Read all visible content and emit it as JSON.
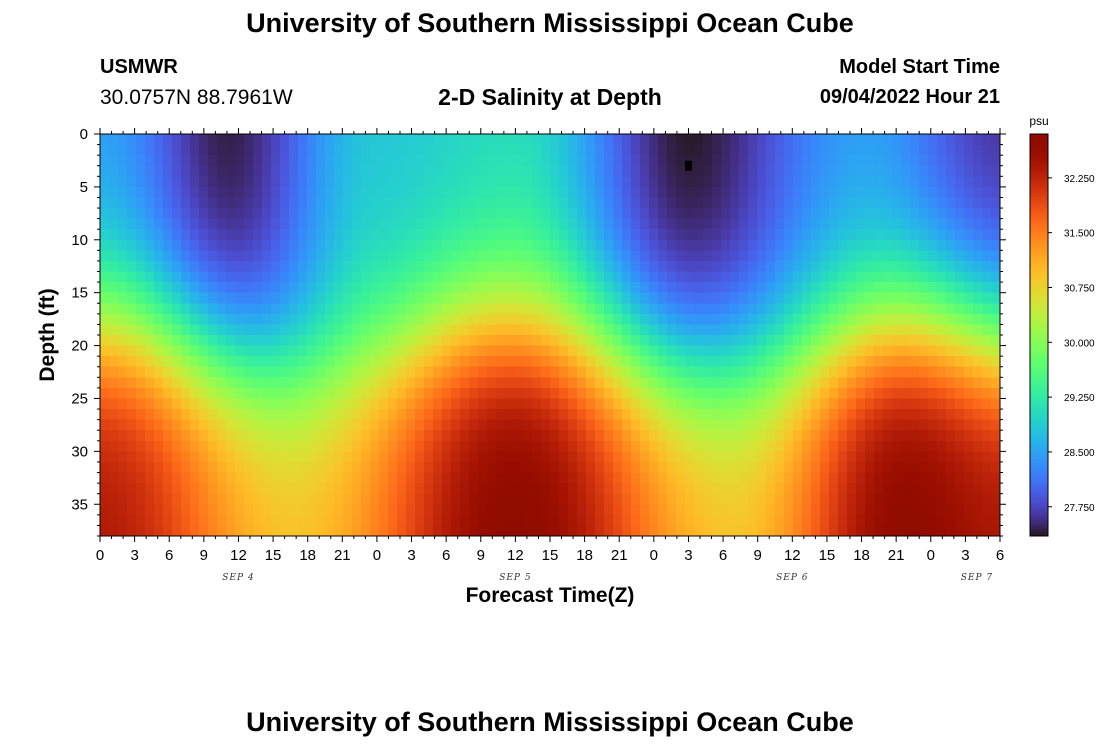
{
  "header": {
    "title": "University of Southern Mississippi Ocean Cube",
    "station": "USMWR",
    "coords": "30.0757N  88.7961W",
    "subtitle": "2-D Salinity at Depth",
    "model_start_label": "Model Start Time",
    "model_start_value": "09/04/2022 Hour 21"
  },
  "footer": {
    "title": "University of Southern Mississippi Ocean Cube"
  },
  "chart_data": {
    "type": "heatmap",
    "title": "2-D Salinity at Depth",
    "xlabel": "Forecast Time(Z)",
    "ylabel": "Depth (ft)",
    "x_range_hours": [
      0,
      78
    ],
    "y_range_ft": [
      0,
      38
    ],
    "y_inverted": true,
    "x_tick_labels": [
      "0",
      "3",
      "6",
      "9",
      "12",
      "15",
      "18",
      "21",
      "0",
      "3",
      "6",
      "9",
      "12",
      "15",
      "18",
      "21",
      "0",
      "3",
      "6",
      "9",
      "12",
      "15",
      "18",
      "21",
      "0",
      "3",
      "6"
    ],
    "y_ticks": [
      0,
      5,
      10,
      15,
      20,
      25,
      30,
      35
    ],
    "date_labels": [
      {
        "text": "SEP 4",
        "hour": 12
      },
      {
        "text": "SEP 5",
        "hour": 36
      },
      {
        "text": "SEP 6",
        "hour": 60
      },
      {
        "text": "SEP 7",
        "hour": 76
      }
    ],
    "colorbar": {
      "unit": "psu",
      "range": [
        27.35,
        32.85
      ],
      "tick_values": [
        32.25,
        31.5,
        30.75,
        30.0,
        29.25,
        28.5,
        27.75
      ],
      "tick_labels": [
        "32.250",
        "31.500",
        "30.750",
        "30.000",
        "29.250",
        "28.500",
        "27.750"
      ],
      "colormap": "turbo"
    },
    "marker": {
      "hour": 51,
      "depth_ft": 3
    },
    "surface_salinity_by_hour": [
      {
        "hour": 0,
        "psu": 28.4
      },
      {
        "hour": 11,
        "psu": 27.4
      },
      {
        "hour": 24,
        "psu": 28.8
      },
      {
        "hour": 36,
        "psu": 29.0
      },
      {
        "hour": 51,
        "psu": 27.35
      },
      {
        "hour": 66,
        "psu": 28.4
      },
      {
        "hour": 78,
        "psu": 27.6
      }
    ],
    "bottom_salinity_by_hour": [
      {
        "hour": 0,
        "psu": 32.4
      },
      {
        "hour": 17,
        "psu": 31.0
      },
      {
        "hour": 36,
        "psu": 32.8
      },
      {
        "hour": 55,
        "psu": 31.0
      },
      {
        "hour": 70,
        "psu": 32.8
      },
      {
        "hour": 78,
        "psu": 32.5
      }
    ]
  }
}
